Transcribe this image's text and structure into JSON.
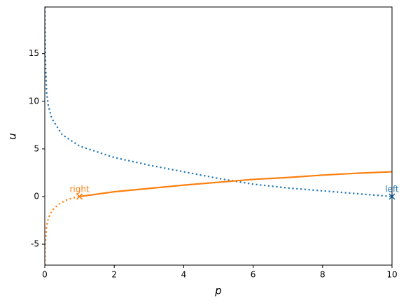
{
  "chart_data": {
    "type": "line",
    "x_label": "p",
    "y_label": "u",
    "xlim": [
      0,
      10
    ],
    "ylim": [
      -7.2,
      19.9
    ],
    "xticks": [
      0,
      2,
      4,
      6,
      8,
      10
    ],
    "yticks": [
      -5,
      0,
      5,
      10,
      15
    ],
    "series": [
      {
        "color": "#1f77b4",
        "style": "dotted",
        "x": [
          0.003,
          0.01,
          0.02,
          0.05,
          0.1,
          0.2,
          0.5,
          1,
          2,
          3,
          4,
          5,
          6,
          7,
          8,
          9,
          10
        ],
        "values": [
          19.9,
          17,
          14,
          11,
          9.6,
          8.2,
          6.5,
          5.3,
          4.1,
          3.3,
          2.6,
          1.9,
          1.3,
          0.9,
          0.6,
          0.3,
          0
        ]
      },
      {
        "color": "#ff7f0e",
        "style": "dotted",
        "x": [
          0.003,
          0.01,
          0.05,
          0.1,
          0.2,
          0.4,
          0.6,
          0.8,
          1
        ],
        "values": [
          -7.2,
          -5,
          -3.2,
          -2.3,
          -1.5,
          -0.8,
          -0.4,
          -0.15,
          0
        ]
      },
      {
        "color": "#ff7f0e",
        "style": "solid",
        "x": [
          1,
          2,
          3,
          4,
          5,
          6,
          7,
          8,
          9,
          10
        ],
        "values": [
          0,
          0.5,
          0.85,
          1.2,
          1.5,
          1.8,
          2.0,
          2.25,
          2.45,
          2.6
        ]
      }
    ],
    "markers": [
      {
        "x": 1,
        "y": 0,
        "label": "right",
        "color": "#ff7f0e"
      },
      {
        "x": 10,
        "y": 0,
        "label": "left",
        "color": "#1f77b4"
      }
    ]
  }
}
